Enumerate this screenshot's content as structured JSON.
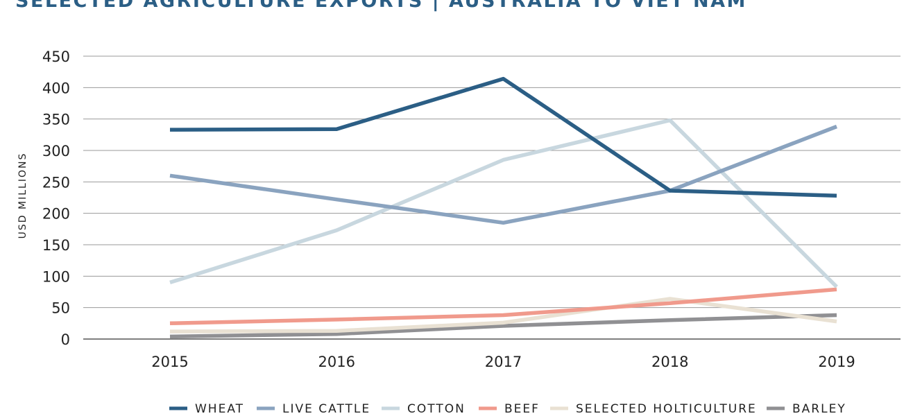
{
  "chart_data": {
    "type": "line",
    "title": "SELECTED AGRICULTURE EXPORTS | AUSTRALIA TO VIET NAM",
    "ylabel": "USD MILLIONS",
    "xlabel": "",
    "x": [
      "2015",
      "2016",
      "2017",
      "2018",
      "2019"
    ],
    "ylim": [
      0,
      450
    ],
    "yticks": [
      0,
      50,
      100,
      150,
      200,
      250,
      300,
      350,
      400,
      450
    ],
    "grid": true,
    "legend_position": "bottom",
    "series": [
      {
        "name": "WHEAT",
        "color": "#2b5e85",
        "values": [
          333,
          334,
          414,
          236,
          228
        ]
      },
      {
        "name": "LIVE CATTLE",
        "color": "#8aa3bf",
        "values": [
          260,
          222,
          185,
          236,
          338
        ]
      },
      {
        "name": "COTTON",
        "color": "#c8d7df",
        "values": [
          90,
          173,
          285,
          348,
          83
        ]
      },
      {
        "name": "BEEF",
        "color": "#f09a8c",
        "values": [
          25,
          31,
          38,
          57,
          79
        ]
      },
      {
        "name": "SELECTED HOLTICULTURE",
        "color": "#e9e1d3",
        "values": [
          12,
          13,
          26,
          64,
          28
        ]
      },
      {
        "name": "BARLEY",
        "color": "#909093",
        "values": [
          4,
          8,
          21,
          30,
          38
        ]
      }
    ]
  }
}
